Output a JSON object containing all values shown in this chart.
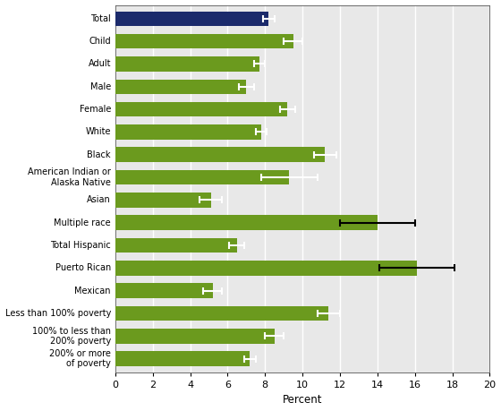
{
  "categories": [
    "Total",
    "Child",
    "Adult",
    "Male",
    "Female",
    "White",
    "Black",
    "American Indian or\nAlaska Native",
    "Asian",
    "Multiple race",
    "Total Hispanic",
    "Puerto Rican",
    "Mexican",
    "Less than 100% poverty",
    "100% to less than\n200% poverty",
    "200% or more\nof poverty"
  ],
  "values": [
    8.2,
    9.5,
    7.7,
    7.0,
    9.2,
    7.8,
    11.2,
    9.3,
    5.1,
    14.0,
    6.5,
    16.1,
    5.2,
    11.4,
    8.5,
    7.2
  ],
  "errors": [
    0.3,
    0.5,
    0.3,
    0.4,
    0.4,
    0.3,
    0.6,
    1.5,
    0.6,
    2.0,
    0.4,
    2.0,
    0.5,
    0.6,
    0.5,
    0.3
  ],
  "bar_colors": [
    "#1b2a6b",
    "#6b9a1e",
    "#6b9a1e",
    "#6b9a1e",
    "#6b9a1e",
    "#6b9a1e",
    "#6b9a1e",
    "#6b9a1e",
    "#6b9a1e",
    "#6b9a1e",
    "#6b9a1e",
    "#6b9a1e",
    "#6b9a1e",
    "#6b9a1e",
    "#6b9a1e",
    "#6b9a1e"
  ],
  "error_colors": [
    "white",
    "white",
    "white",
    "white",
    "white",
    "white",
    "white",
    "white",
    "white",
    "black",
    "white",
    "black",
    "white",
    "white",
    "white",
    "white"
  ],
  "xlabel": "Percent",
  "xlim": [
    0,
    20
  ],
  "xticks": [
    0,
    2,
    4,
    6,
    8,
    10,
    12,
    14,
    16,
    18,
    20
  ],
  "background_color": "#e8e8e8",
  "bar_height": 0.65,
  "figwidth": 5.6,
  "figheight": 4.59,
  "dpi": 100
}
